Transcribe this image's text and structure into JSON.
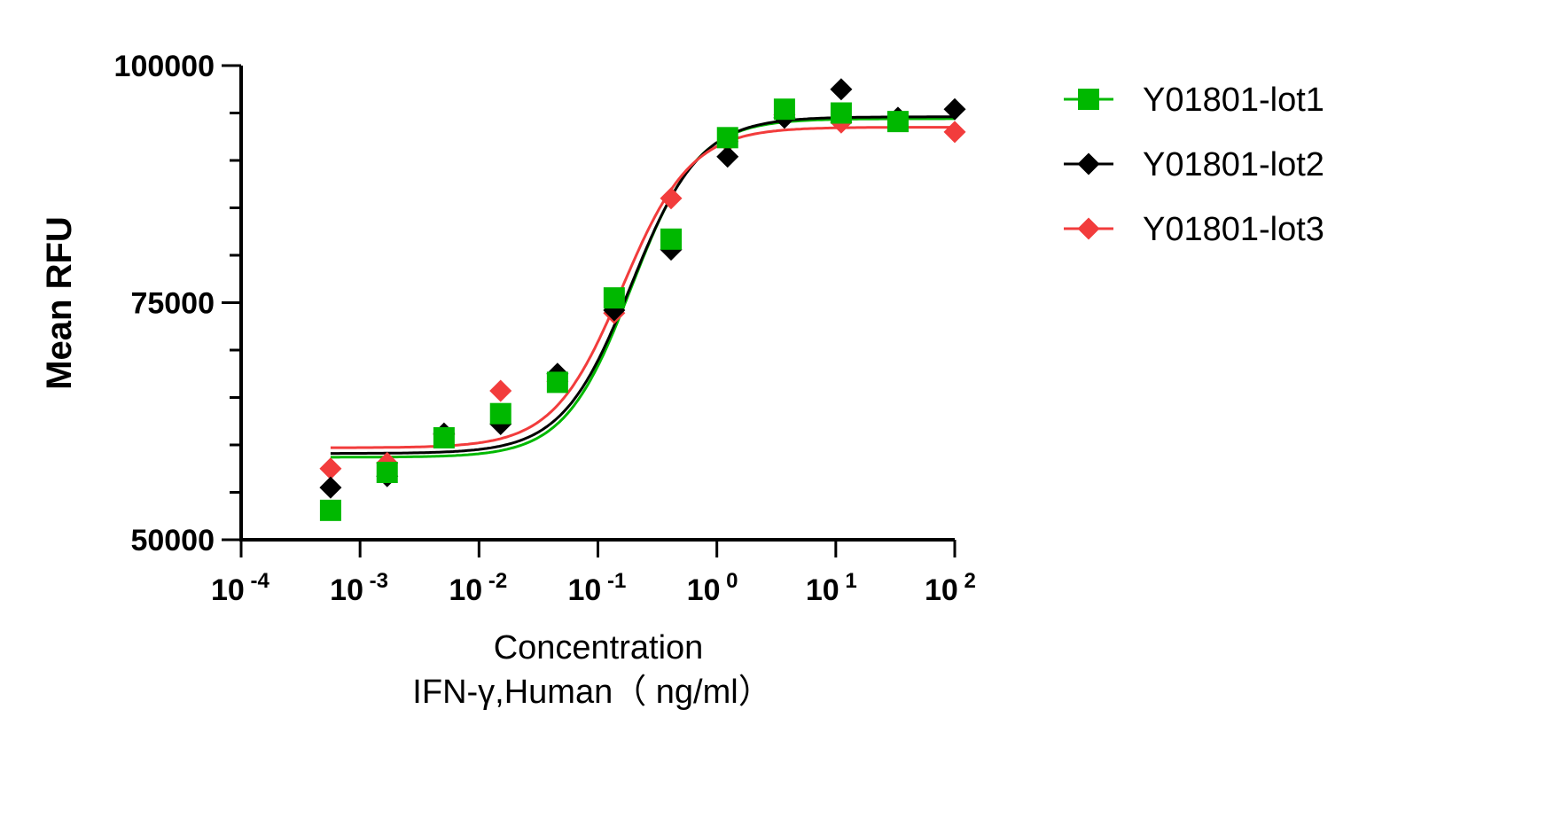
{
  "chart_data": {
    "type": "scatter",
    "xscale": "log",
    "xlim": [
      0.0001,
      100
    ],
    "ylim": [
      50000,
      100000
    ],
    "xlabel": "Concentration",
    "xlabel2": "IFN-γ,Human（ ng/ml）",
    "ylabel": "Mean RFU",
    "x_ticks": [
      {
        "base": "10",
        "exp": "-4"
      },
      {
        "base": "10",
        "exp": "-3"
      },
      {
        "base": "10",
        "exp": "-2"
      },
      {
        "base": "10",
        "exp": "-1"
      },
      {
        "base": "10",
        "exp": "0"
      },
      {
        "base": "10",
        "exp": "1"
      },
      {
        "base": "10",
        "exp": "2"
      }
    ],
    "y_ticks": [
      "50000",
      "75000",
      "100000"
    ],
    "legend_position": "right",
    "x": [
      0.000565,
      0.00169,
      0.00508,
      0.0152,
      0.0457,
      0.137,
      0.412,
      1.23,
      3.7,
      11.1,
      33.3,
      100
    ],
    "series": [
      {
        "name": "Y01801-lot1",
        "color": "#00b800",
        "marker": "square",
        "values": [
          53100,
          57100,
          60750,
          63300,
          66600,
          75500,
          81700,
          92400,
          95400,
          95000,
          94100,
          null
        ],
        "fit": {
          "model": "4PL",
          "bottom": 58700,
          "top": 94400,
          "ec50": 0.19,
          "hill": 1.55
        }
      },
      {
        "name": "Y01801-lot2",
        "color": "#000000",
        "marker": "diamond",
        "values": [
          55500,
          56700,
          61200,
          62200,
          67500,
          74200,
          80600,
          90400,
          94500,
          97500,
          94500,
          95400
        ],
        "fit": {
          "model": "4PL",
          "bottom": 59100,
          "top": 94600,
          "ec50": 0.19,
          "hill": 1.5
        }
      },
      {
        "name": "Y01801-lot3",
        "color": "#f23c3c",
        "marker": "diamond",
        "values": [
          57500,
          58100,
          61100,
          65700,
          66700,
          73900,
          86000,
          92000,
          94800,
          94000,
          94300,
          93000
        ],
        "fit": {
          "model": "4PL",
          "bottom": 59700,
          "top": 93500,
          "ec50": 0.16,
          "hill": 1.5
        }
      }
    ]
  }
}
